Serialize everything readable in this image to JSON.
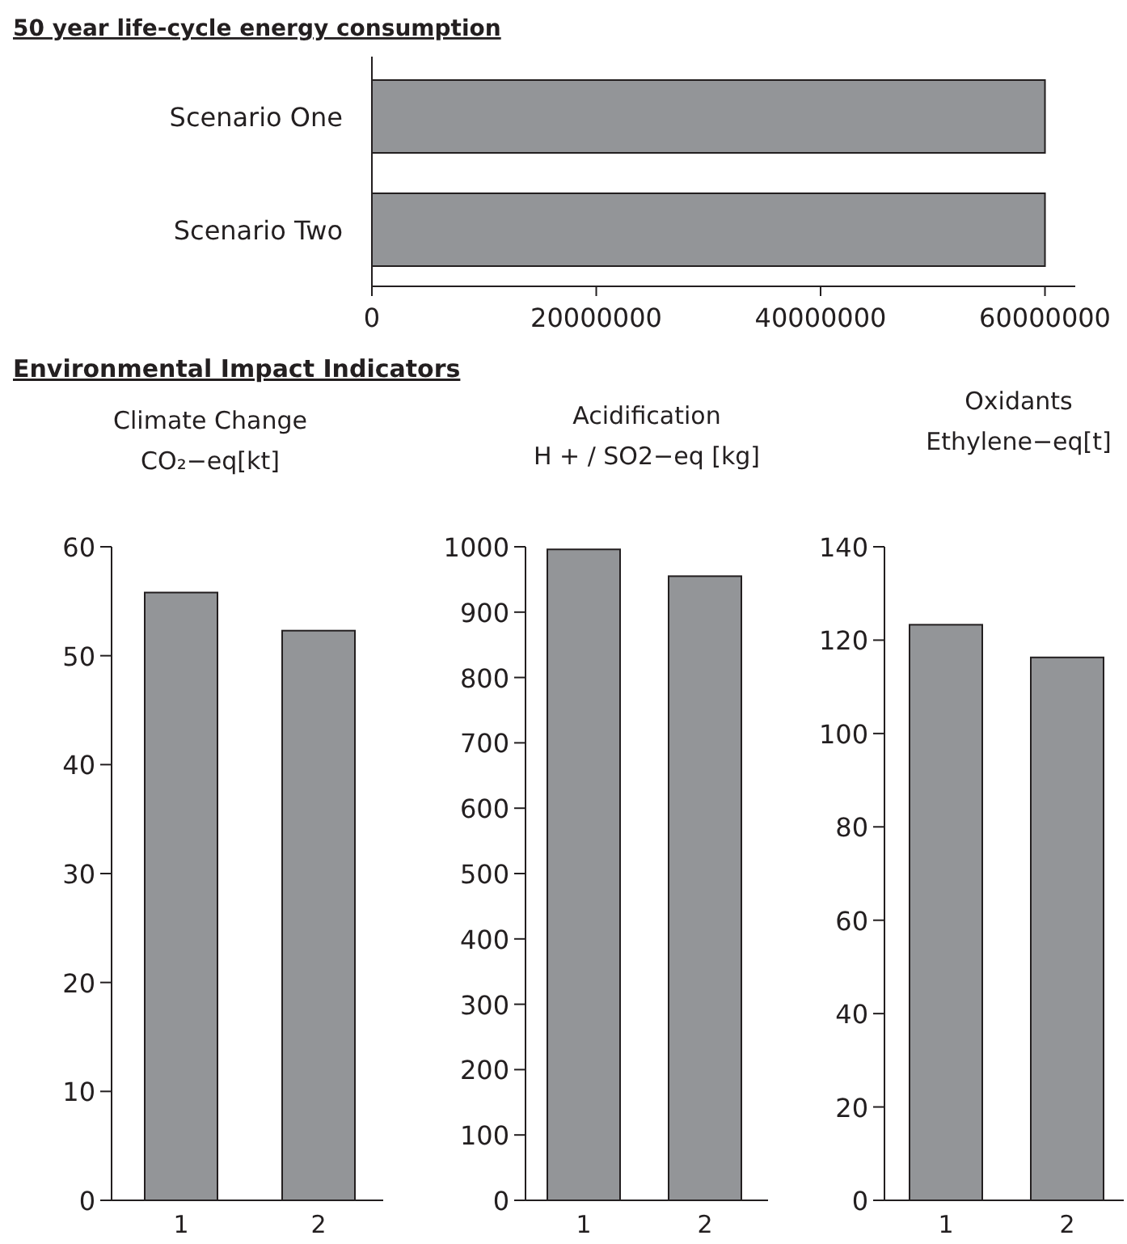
{
  "chart_data": [
    {
      "type": "bar",
      "orientation": "horizontal",
      "title": "50 year life-cycle energy consumption",
      "categories": [
        "Scenario One",
        "Scenario Two"
      ],
      "values": [
        60000000,
        60000000
      ],
      "color": "#939598",
      "xlim": [
        0,
        62700000
      ],
      "xticks": [
        0,
        20000000,
        40000000,
        60000000
      ]
    },
    {
      "type": "bar",
      "title": "Climate Change\nCO₂−eq[kt]",
      "annotations": [
        "Environmental Impact Indicators"
      ],
      "categories": [
        "1",
        "2"
      ],
      "values": [
        55.8,
        52.3
      ],
      "color": "#939598",
      "ylim": [
        0,
        60
      ],
      "yticks": [
        0,
        10,
        20,
        30,
        40,
        50,
        60
      ]
    },
    {
      "type": "bar",
      "title": "Acidification\nH + / SO2−eq [kg]",
      "categories": [
        "1",
        "2"
      ],
      "values": [
        996,
        955
      ],
      "color": "#939598",
      "ylim": [
        0,
        1000
      ],
      "yticks": [
        0,
        100,
        200,
        300,
        400,
        500,
        600,
        700,
        800,
        900,
        1000
      ]
    },
    {
      "type": "bar",
      "title": "Oxidants\nEthylene−eq[t]",
      "categories": [
        "1",
        "2"
      ],
      "values": [
        123.3,
        116.3
      ],
      "color": "#939598",
      "ylim": [
        0,
        140
      ],
      "yticks": [
        0,
        20,
        40,
        60,
        80,
        100,
        120,
        140
      ]
    }
  ]
}
